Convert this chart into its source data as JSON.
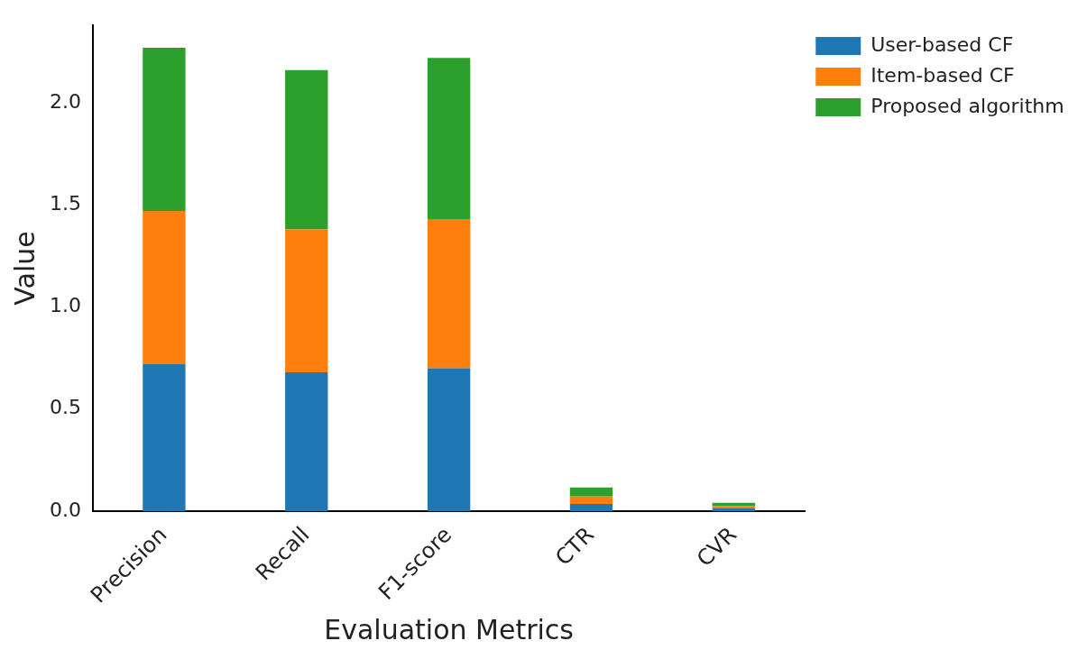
{
  "chart_data": {
    "type": "bar",
    "stacked": true,
    "xlabel": "Evaluation Metrics",
    "ylabel": "Value",
    "categories": [
      "Precision",
      "Recall",
      "F1-score",
      "CTR",
      "CVR"
    ],
    "series": [
      {
        "name": "User-based CF",
        "color": "#1f77b4",
        "values": [
          0.72,
          0.68,
          0.7,
          0.035,
          0.013
        ]
      },
      {
        "name": "Item-based CF",
        "color": "#ff7f0e",
        "values": [
          0.75,
          0.7,
          0.73,
          0.036,
          0.012
        ]
      },
      {
        "name": "Proposed algorithm",
        "color": "#2ca02c",
        "values": [
          0.8,
          0.78,
          0.79,
          0.044,
          0.016
        ]
      }
    ],
    "ylim": [
      0,
      2.38
    ],
    "yticks": [
      {
        "value": 0,
        "label": "0.0"
      },
      0.5,
      {
        "value": 1,
        "label": "1.0"
      },
      1.5,
      {
        "value": 2,
        "label": "2.0"
      }
    ],
    "grid": false,
    "legend": "top right"
  }
}
